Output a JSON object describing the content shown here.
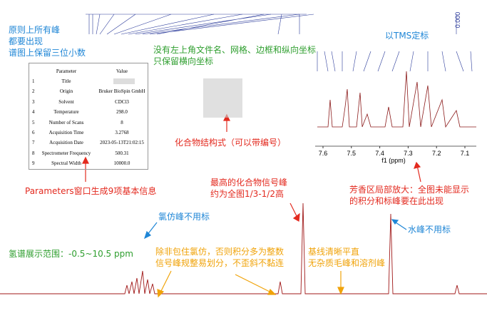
{
  "annotations": {
    "all_peaks": [
      "原则上所有峰",
      "都要出现",
      "谱图上保留三位小数"
    ],
    "no_grid": [
      "没有左上角文件名、网格、边框和纵向坐标",
      "只保留横向坐标"
    ],
    "tms": "以TMS定标",
    "structure": "化合物结构式（可以带编号）",
    "parameters": "Parameters窗口生成9项基本信息",
    "highest": [
      "最高的化合物信号峰",
      "约为全图1/3-1/2高"
    ],
    "aromatic": [
      "芳香区局部放大：全图未能显示",
      "的积分和标峰要在此出现"
    ],
    "chloroform": "氯仿峰不用标",
    "water": "水峰不用标",
    "range": "氢谱展示范围：-0.5~10.5 ppm",
    "integrals": [
      "除非包住氯仿，否则积分多为整数",
      "信号峰规整易划分，不歪斜不黏连"
    ],
    "baseline": [
      "基线清晰平直",
      "无杂质毛峰和溶剂峰"
    ]
  },
  "table": {
    "header": [
      "Parameter",
      "Value"
    ],
    "rows": [
      [
        "1",
        "Title",
        ""
      ],
      [
        "2",
        "Origin",
        "Bruker BioSpin GmbH"
      ],
      [
        "3",
        "Solvent",
        "CDCl3"
      ],
      [
        "4",
        "Temperature",
        "298.0"
      ],
      [
        "5",
        "Number of Scans",
        "8"
      ],
      [
        "6",
        "Acquisition Time",
        "3.2768"
      ],
      [
        "7",
        "Acquisition Date",
        "2023-05-13T21:02:15"
      ],
      [
        "8",
        "Spectrometer Frequency",
        "500.31"
      ],
      [
        "9",
        "Spectral Width",
        "10000.0"
      ]
    ]
  },
  "inset": {
    "ticks": [
      "7.6",
      "7.5",
      "7.4",
      "7.3",
      "7.2",
      "7.1"
    ],
    "axis_label": "f1 (ppm)"
  },
  "tms_label": "0.000"
}
